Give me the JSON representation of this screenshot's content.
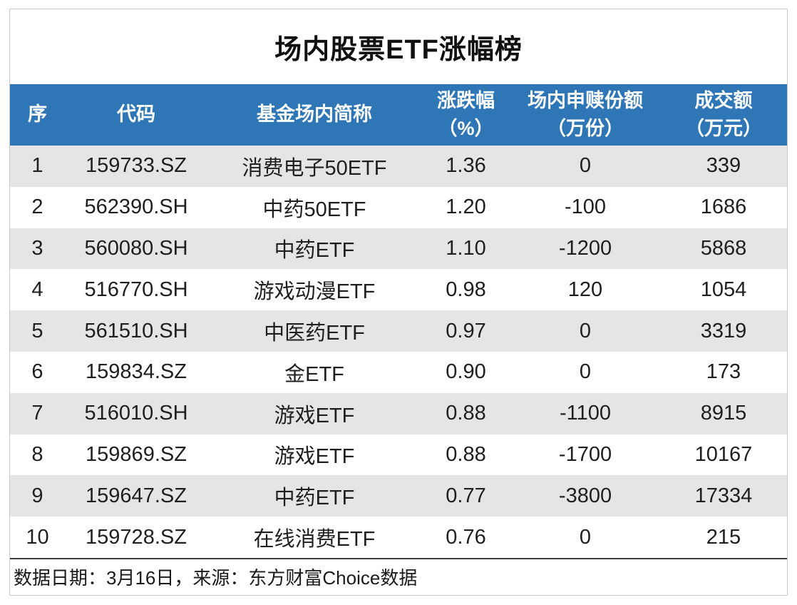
{
  "title": "场内股票ETF涨幅榜",
  "chart_data": {
    "type": "table",
    "title": "场内股票ETF涨幅榜",
    "columns": [
      {
        "line1": "序",
        "line2": ""
      },
      {
        "line1": "代码",
        "line2": ""
      },
      {
        "line1": "基金场内简称",
        "line2": ""
      },
      {
        "line1": "涨跌幅",
        "line2": "（%）"
      },
      {
        "line1": "场内申赎份额",
        "line2": "（万份）"
      },
      {
        "line1": "成交额",
        "line2": "（万元）"
      }
    ],
    "rows": [
      [
        "1",
        "159733.SZ",
        "消费电子50ETF",
        "1.36",
        "0",
        "339"
      ],
      [
        "2",
        "562390.SH",
        "中药50ETF",
        "1.20",
        "-100",
        "1686"
      ],
      [
        "3",
        "560080.SH",
        "中药ETF",
        "1.10",
        "-1200",
        "5868"
      ],
      [
        "4",
        "516770.SH",
        "游戏动漫ETF",
        "0.98",
        "120",
        "1054"
      ],
      [
        "5",
        "561510.SH",
        "中医药ETF",
        "0.97",
        "0",
        "3319"
      ],
      [
        "6",
        "159834.SZ",
        "金ETF",
        "0.90",
        "0",
        "173"
      ],
      [
        "7",
        "516010.SH",
        "游戏ETF",
        "0.88",
        "-1100",
        "8915"
      ],
      [
        "8",
        "159869.SZ",
        "游戏ETF",
        "0.88",
        "-1700",
        "10167"
      ],
      [
        "9",
        "159647.SZ",
        "中药ETF",
        "0.77",
        "-3800",
        "17334"
      ],
      [
        "10",
        "159728.SZ",
        "在线消费ETF",
        "0.76",
        "0",
        "215"
      ]
    ]
  },
  "footer": {
    "text": "数据日期：3月16日，来源：东方财富Choice数据"
  },
  "colors": {
    "header_bg": "#2e76b6",
    "header_text": "#ffffff",
    "row_alt_bg": "#e7e5e3",
    "body_text": "#1f1f1f",
    "card_border": "#c9c9c9",
    "footer_divider": "#3c3c3c"
  }
}
